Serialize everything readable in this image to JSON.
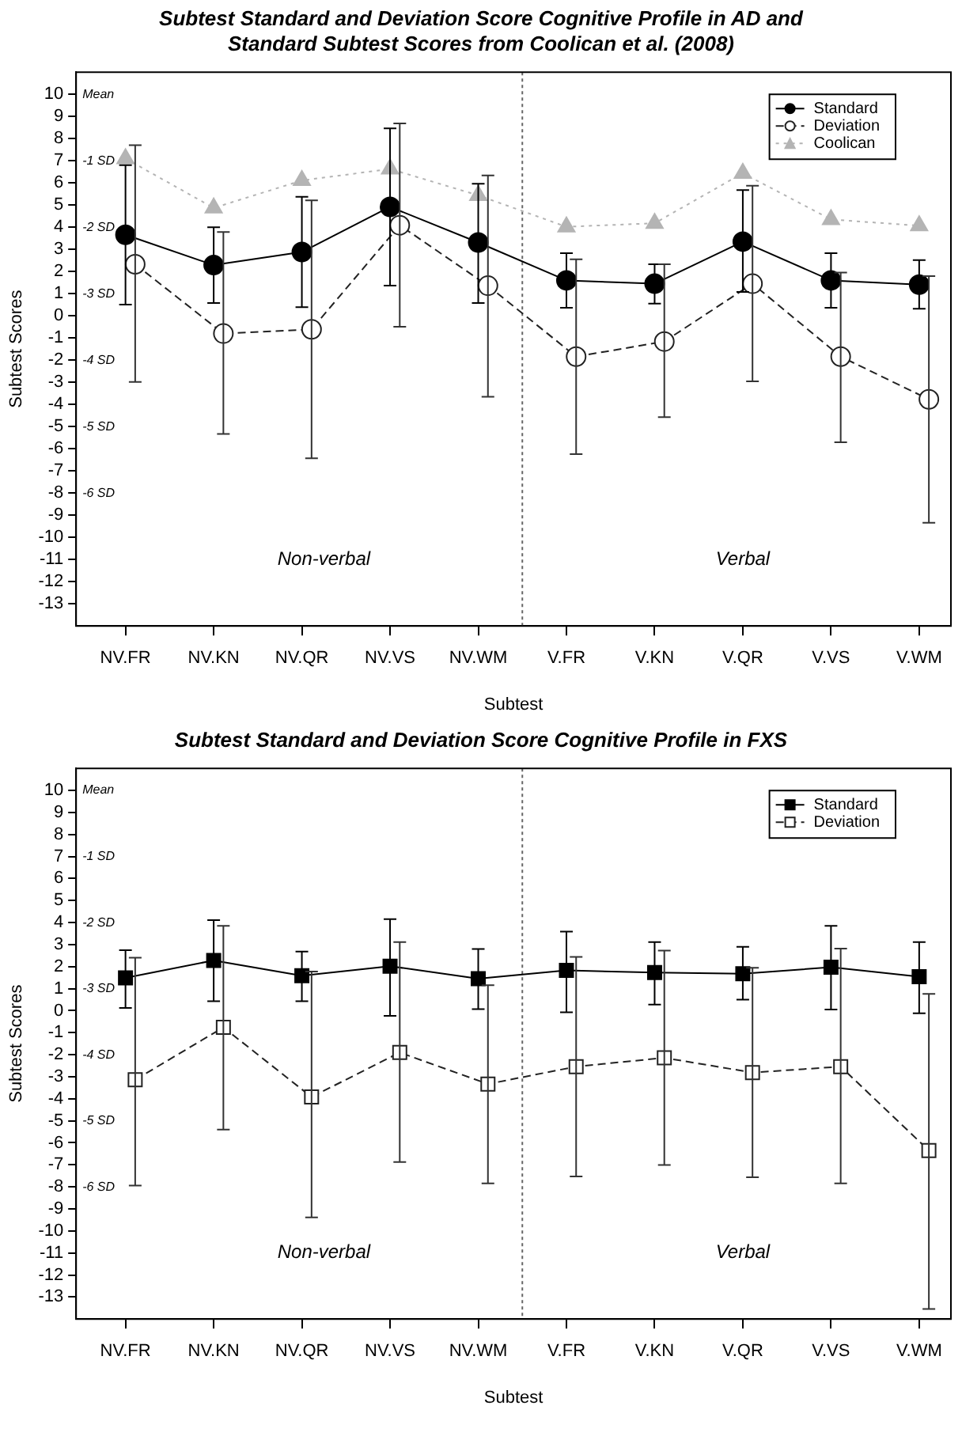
{
  "chart_data": [
    {
      "type": "line",
      "title": "Subtest Standard and Deviation Score Cognitive Profile in AD and Standard Subtest Scores from Coolican et al. (2008)",
      "xlabel": "Subtest",
      "ylabel": "Subtest Scores",
      "categories": [
        "NV.FR",
        "NV.KN",
        "NV.QR",
        "NV.VS",
        "NV.WM",
        "V.FR",
        "V.KN",
        "V.QR",
        "V.VS",
        "V.WM"
      ],
      "series": [
        {
          "name": "Standard",
          "color": "#000000",
          "marker": "circle",
          "line_style": "solid",
          "values": [
            3.66,
            2.29,
            2.88,
            4.92,
            3.31,
            1.6,
            1.45,
            3.35,
            1.6,
            1.41
          ],
          "errors": [
            [
              0.51,
              6.8
            ],
            [
              0.58,
              4.0
            ],
            [
              0.39,
              5.37
            ],
            [
              1.36,
              8.46
            ],
            [
              0.58,
              5.96
            ],
            [
              0.36,
              2.83
            ],
            [
              0.55,
              2.33
            ],
            [
              1.08,
              5.68
            ],
            [
              0.36,
              2.83
            ],
            [
              0.32,
              2.52
            ]
          ]
        },
        {
          "name": "Deviation",
          "color": "#222222",
          "marker": "circle",
          "line_style": "dashed",
          "values": [
            2.33,
            -0.8,
            -0.61,
            4.09,
            1.36,
            -1.84,
            -1.16,
            1.45,
            -1.84,
            -3.77
          ],
          "errors": [
            [
              -2.98,
              7.7
            ],
            [
              -5.33,
              3.78
            ],
            [
              -6.43,
              5.21
            ],
            [
              -0.49,
              8.69
            ],
            [
              -3.65,
              6.34
            ],
            [
              -6.24,
              2.55
            ],
            [
              -4.57,
              2.33
            ],
            [
              -2.96,
              5.87
            ],
            [
              -5.71,
              1.95
            ],
            [
              -9.34,
              1.79
            ]
          ]
        },
        {
          "name": "Coolican",
          "color": "#b4b4b4",
          "marker": "triangle",
          "line_style": "dotted",
          "values": [
            7.1,
            4.87,
            6.11,
            6.63,
            5.44,
            4.02,
            4.18,
            6.44,
            4.35,
            4.07
          ]
        }
      ],
      "ylim": [
        -14,
        11
      ],
      "yticks": [
        -13,
        -12,
        -11,
        -10,
        -9,
        -8,
        -7,
        -6,
        -5,
        -4,
        -3,
        -2,
        -1,
        0,
        1,
        2,
        3,
        4,
        5,
        6,
        7,
        8,
        9,
        10
      ],
      "grid": false,
      "legend": "top right",
      "annotations": [
        "Mean",
        "-1 SD",
        "-2 SD",
        "-3 SD",
        "-4 SD",
        "-5 SD",
        "-6 SD",
        "Non-verbal",
        "Verbal"
      ]
    },
    {
      "type": "line",
      "title": "Subtest Standard and Deviation Score Cognitive Profile in FXS",
      "xlabel": "Subtest",
      "ylabel": "Subtest Scores",
      "categories": [
        "NV.FR",
        "NV.KN",
        "NV.QR",
        "NV.VS",
        "NV.WM",
        "V.FR",
        "V.KN",
        "V.QR",
        "V.VS",
        "V.WM"
      ],
      "series": [
        {
          "name": "Standard",
          "color": "#000000",
          "marker": "square",
          "line_style": "solid",
          "values": [
            1.49,
            2.28,
            1.59,
            2.02,
            1.45,
            1.83,
            1.73,
            1.68,
            1.97,
            1.54
          ],
          "errors": [
            [
              0.12,
              2.75
            ],
            [
              0.43,
              4.11
            ],
            [
              0.43,
              2.68
            ],
            [
              -0.24,
              4.16
            ],
            [
              0.07,
              2.8
            ],
            [
              -0.07,
              3.59
            ],
            [
              0.28,
              3.11
            ],
            [
              0.5,
              2.9
            ],
            [
              0.05,
              3.85
            ],
            [
              -0.12,
              3.11
            ]
          ]
        },
        {
          "name": "Deviation",
          "color": "#222222",
          "marker": "square",
          "line_style": "dashed",
          "values": [
            -3.14,
            -0.76,
            -3.92,
            -1.9,
            -3.33,
            -2.54,
            -2.14,
            -2.81,
            -2.54,
            -6.35
          ],
          "errors": [
            [
              -7.94,
              2.4
            ],
            [
              -5.4,
              3.85
            ],
            [
              -9.39,
              1.78
            ],
            [
              -6.87,
              3.11
            ],
            [
              -7.84,
              1.16
            ],
            [
              -7.53,
              2.44
            ],
            [
              -7.01,
              2.73
            ],
            [
              -7.56,
              1.95
            ],
            [
              -7.84,
              2.82
            ],
            [
              -13.54,
              0.76
            ]
          ]
        }
      ],
      "ylim": [
        -14,
        11
      ],
      "yticks": [
        -13,
        -12,
        -11,
        -10,
        -9,
        -8,
        -7,
        -6,
        -5,
        -4,
        -3,
        -2,
        -1,
        0,
        1,
        2,
        3,
        4,
        5,
        6,
        7,
        8,
        9,
        10
      ],
      "grid": false,
      "legend": "top right",
      "annotations": [
        "Mean",
        "-1 SD",
        "-2 SD",
        "-3 SD",
        "-4 SD",
        "-5 SD",
        "-6 SD",
        "Non-verbal",
        "Verbal"
      ]
    }
  ]
}
